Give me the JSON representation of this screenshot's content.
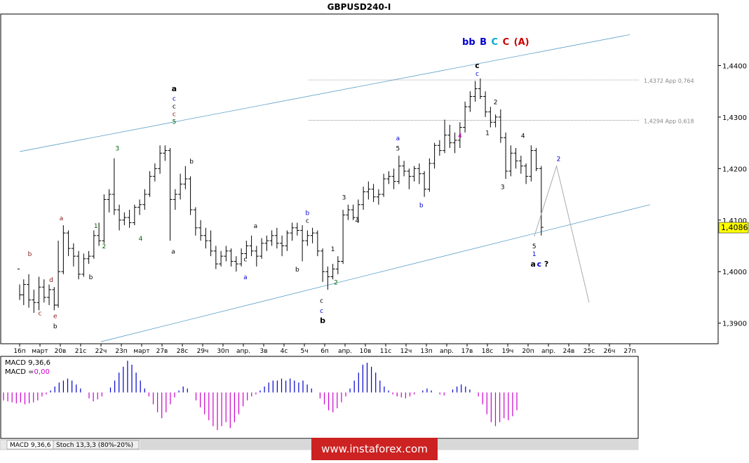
{
  "title": "GBPUSD240-I",
  "chart_data": {
    "type": "candlestick",
    "symbol": "GBPUSD240-I",
    "ylim": [
      1.386,
      1.45
    ],
    "yticks": [
      1.39,
      1.4,
      1.41,
      1.42,
      1.43,
      1.44
    ],
    "ytick_labels": [
      "1,3900",
      "1,4000",
      "1,4100",
      "1,4200",
      "1,4300",
      "1,4400"
    ],
    "current_price": 1.4086,
    "current_price_label": "1,4086",
    "xtick_labels": [
      "16п",
      "март",
      "20в",
      "21с",
      "22ч",
      "23п",
      "март",
      "27в",
      "28с",
      "29ч",
      "30п",
      "апр.",
      "3в",
      "4с",
      "5ч",
      "6п",
      "апр.",
      "10в",
      "11с",
      "12ч",
      "13п",
      "апр.",
      "17в",
      "18с",
      "19ч",
      "20п",
      "апр.",
      "24в",
      "25с",
      "26ч",
      "27п"
    ],
    "fib_levels": [
      {
        "value": 1.4372,
        "label": "1,4372 App 0,764"
      },
      {
        "value": 1.4294,
        "label": "1,4294 App 0,618"
      }
    ],
    "channel": {
      "upper": [
        [
          0,
          1.4233
        ],
        [
          30,
          1.446
        ]
      ],
      "lower": [
        [
          4,
          1.3864
        ],
        [
          31,
          1.413
        ]
      ]
    },
    "projection": [
      [
        25.3,
        1.4068
      ],
      [
        26.4,
        1.4205
      ],
      [
        28,
        1.394
      ]
    ],
    "bars": [
      [
        0.0,
        1.4005,
        1.3975,
        1.3945,
        1.3955
      ],
      [
        0.2,
        1.3955,
        1.3985,
        1.3935,
        1.3975
      ],
      [
        0.45,
        1.3975,
        1.3995,
        1.393,
        1.3945
      ],
      [
        0.7,
        1.3945,
        1.3965,
        1.392,
        1.394
      ],
      [
        0.95,
        1.394,
        1.399,
        1.3925,
        1.397
      ],
      [
        1.2,
        1.397,
        1.3985,
        1.394,
        1.395
      ],
      [
        1.45,
        1.395,
        1.3975,
        1.3935,
        1.3965
      ],
      [
        1.7,
        1.3965,
        1.397,
        1.3925,
        1.3935
      ],
      [
        1.9,
        1.3935,
        1.406,
        1.393,
        1.4
      ],
      [
        2.15,
        1.4,
        1.409,
        1.3995,
        1.4075
      ],
      [
        2.4,
        1.4075,
        1.408,
        1.403,
        1.4045
      ],
      [
        2.65,
        1.4045,
        1.4055,
        1.401,
        1.403
      ],
      [
        2.9,
        1.403,
        1.404,
        1.3985,
        1.3995
      ],
      [
        3.15,
        1.3995,
        1.4035,
        1.399,
        1.4025
      ],
      [
        3.4,
        1.4025,
        1.404,
        1.4015,
        1.403
      ],
      [
        3.65,
        1.403,
        1.408,
        1.4025,
        1.407
      ],
      [
        3.9,
        1.407,
        1.4095,
        1.405,
        1.406
      ],
      [
        4.15,
        1.406,
        1.415,
        1.4055,
        1.414
      ],
      [
        4.4,
        1.414,
        1.416,
        1.4115,
        1.415
      ],
      [
        4.65,
        1.415,
        1.422,
        1.411,
        1.412
      ],
      [
        4.9,
        1.412,
        1.413,
        1.408,
        1.41
      ],
      [
        5.15,
        1.41,
        1.4115,
        1.409,
        1.4105
      ],
      [
        5.4,
        1.4105,
        1.412,
        1.4085,
        1.4095
      ],
      [
        5.65,
        1.4095,
        1.413,
        1.409,
        1.4125
      ],
      [
        5.9,
        1.4125,
        1.414,
        1.411,
        1.413
      ],
      [
        6.15,
        1.413,
        1.416,
        1.412,
        1.415
      ],
      [
        6.4,
        1.415,
        1.4195,
        1.4145,
        1.4185
      ],
      [
        6.65,
        1.4185,
        1.421,
        1.4175,
        1.42
      ],
      [
        6.9,
        1.42,
        1.4245,
        1.419,
        1.423
      ],
      [
        7.15,
        1.423,
        1.4245,
        1.4215,
        1.4235
      ],
      [
        7.4,
        1.4235,
        1.424,
        1.406,
        1.414
      ],
      [
        7.65,
        1.414,
        1.416,
        1.412,
        1.415
      ],
      [
        7.9,
        1.415,
        1.419,
        1.414,
        1.417
      ],
      [
        8.15,
        1.417,
        1.4205,
        1.416,
        1.418
      ],
      [
        8.4,
        1.418,
        1.4185,
        1.411,
        1.412
      ],
      [
        8.65,
        1.412,
        1.4125,
        1.407,
        1.4085
      ],
      [
        8.9,
        1.4085,
        1.41,
        1.406,
        1.407
      ],
      [
        9.15,
        1.407,
        1.4085,
        1.4045,
        1.406
      ],
      [
        9.4,
        1.406,
        1.408,
        1.403,
        1.404
      ],
      [
        9.65,
        1.404,
        1.405,
        1.4005,
        1.4015
      ],
      [
        9.9,
        1.4015,
        1.404,
        1.401,
        1.403
      ],
      [
        10.15,
        1.403,
        1.405,
        1.402,
        1.404
      ],
      [
        10.4,
        1.404,
        1.4045,
        1.401,
        1.402
      ],
      [
        10.65,
        1.402,
        1.403,
        1.4,
        1.4015
      ],
      [
        10.9,
        1.4015,
        1.4045,
        1.401,
        1.4035
      ],
      [
        11.15,
        1.4035,
        1.406,
        1.4025,
        1.405
      ],
      [
        11.4,
        1.405,
        1.407,
        1.403,
        1.404
      ],
      [
        11.65,
        1.404,
        1.405,
        1.401,
        1.403
      ],
      [
        11.9,
        1.403,
        1.4065,
        1.4025,
        1.4055
      ],
      [
        12.15,
        1.4055,
        1.407,
        1.404,
        1.406
      ],
      [
        12.4,
        1.406,
        1.408,
        1.405,
        1.407
      ],
      [
        12.65,
        1.407,
        1.4085,
        1.4045,
        1.4055
      ],
      [
        12.9,
        1.4055,
        1.407,
        1.403,
        1.405
      ],
      [
        13.15,
        1.405,
        1.408,
        1.404,
        1.4075
      ],
      [
        13.4,
        1.4075,
        1.4095,
        1.406,
        1.4085
      ],
      [
        13.65,
        1.4085,
        1.4095,
        1.407,
        1.408
      ],
      [
        13.9,
        1.408,
        1.409,
        1.402,
        1.406
      ],
      [
        14.15,
        1.406,
        1.408,
        1.405,
        1.407
      ],
      [
        14.4,
        1.407,
        1.4085,
        1.4055,
        1.4075
      ],
      [
        14.65,
        1.4075,
        1.408,
        1.403,
        1.404
      ],
      [
        14.9,
        1.404,
        1.4045,
        1.398,
        1.4
      ],
      [
        15.15,
        1.4,
        1.401,
        1.3965,
        1.399
      ],
      [
        15.4,
        1.399,
        1.4015,
        1.3985,
        1.4005
      ],
      [
        15.65,
        1.4005,
        1.403,
        1.3995,
        1.402
      ],
      [
        15.9,
        1.402,
        1.412,
        1.4015,
        1.411
      ],
      [
        16.15,
        1.411,
        1.413,
        1.41,
        1.412
      ],
      [
        16.4,
        1.412,
        1.413,
        1.41,
        1.4105
      ],
      [
        16.65,
        1.4105,
        1.414,
        1.4095,
        1.413
      ],
      [
        16.9,
        1.413,
        1.4165,
        1.412,
        1.4155
      ],
      [
        17.15,
        1.4155,
        1.4175,
        1.414,
        1.416
      ],
      [
        17.4,
        1.416,
        1.417,
        1.4135,
        1.4145
      ],
      [
        17.65,
        1.4145,
        1.416,
        1.413,
        1.415
      ],
      [
        17.9,
        1.415,
        1.419,
        1.4145,
        1.418
      ],
      [
        18.15,
        1.418,
        1.4195,
        1.417,
        1.4185
      ],
      [
        18.4,
        1.4185,
        1.42,
        1.416,
        1.4175
      ],
      [
        18.65,
        1.4175,
        1.4225,
        1.417,
        1.4205
      ],
      [
        18.9,
        1.4205,
        1.4215,
        1.4185,
        1.4195
      ],
      [
        19.15,
        1.4195,
        1.42,
        1.416,
        1.4185
      ],
      [
        19.4,
        1.4185,
        1.4205,
        1.4175,
        1.42
      ],
      [
        19.65,
        1.42,
        1.421,
        1.417,
        1.419
      ],
      [
        19.9,
        1.419,
        1.4195,
        1.4145,
        1.416
      ],
      [
        20.15,
        1.416,
        1.422,
        1.4155,
        1.421
      ],
      [
        20.4,
        1.421,
        1.425,
        1.42,
        1.4245
      ],
      [
        20.65,
        1.4245,
        1.4255,
        1.4225,
        1.4235
      ],
      [
        20.9,
        1.4235,
        1.4295,
        1.423,
        1.4265
      ],
      [
        21.15,
        1.4265,
        1.4285,
        1.424,
        1.425
      ],
      [
        21.4,
        1.425,
        1.427,
        1.423,
        1.4255
      ],
      [
        21.65,
        1.4255,
        1.429,
        1.424,
        1.428
      ],
      [
        21.9,
        1.428,
        1.433,
        1.427,
        1.432
      ],
      [
        22.15,
        1.432,
        1.435,
        1.431,
        1.434
      ],
      [
        22.4,
        1.434,
        1.437,
        1.433,
        1.4355
      ],
      [
        22.65,
        1.4355,
        1.4375,
        1.4335,
        1.434
      ],
      [
        22.9,
        1.434,
        1.435,
        1.43,
        1.431
      ],
      [
        23.15,
        1.431,
        1.432,
        1.428,
        1.429
      ],
      [
        23.4,
        1.429,
        1.4305,
        1.428,
        1.43
      ],
      [
        23.65,
        1.43,
        1.4315,
        1.425,
        1.426
      ],
      [
        23.9,
        1.426,
        1.427,
        1.418,
        1.4195
      ],
      [
        24.15,
        1.4195,
        1.4245,
        1.4185,
        1.423
      ],
      [
        24.4,
        1.423,
        1.424,
        1.42,
        1.4215
      ],
      [
        24.65,
        1.4215,
        1.4225,
        1.419,
        1.4205
      ],
      [
        24.9,
        1.4205,
        1.421,
        1.417,
        1.4185
      ],
      [
        25.15,
        1.4185,
        1.4245,
        1.4175,
        1.4235
      ],
      [
        25.4,
        1.4235,
        1.424,
        1.4195,
        1.42
      ],
      [
        25.65,
        1.42,
        1.4205,
        1.407,
        1.4086
      ]
    ],
    "labels": [
      {
        "x": 0.5,
        "y": 1.403,
        "t": "b",
        "c": "#8b1a1a"
      },
      {
        "x": 1.0,
        "y": 1.3915,
        "t": "c",
        "c": "#8b1a1a"
      },
      {
        "x": 1.55,
        "y": 1.398,
        "t": "d",
        "c": "#8b1a1a"
      },
      {
        "x": 1.75,
        "y": 1.391,
        "t": "e",
        "c": "#8b1a1a"
      },
      {
        "x": 1.75,
        "y": 1.389,
        "t": "b",
        "c": "#000000"
      },
      {
        "x": 2.05,
        "y": 1.41,
        "t": "a",
        "c": "#8b1a1a"
      },
      {
        "x": 3.5,
        "y": 1.3985,
        "t": "b",
        "c": "#000000"
      },
      {
        "x": 3.75,
        "y": 1.4085,
        "t": "1",
        "c": "#006400"
      },
      {
        "x": 4.15,
        "y": 1.4045,
        "t": "2",
        "c": "#006400"
      },
      {
        "x": 4.8,
        "y": 1.4235,
        "t": "3",
        "c": "#006400"
      },
      {
        "x": 5.95,
        "y": 1.406,
        "t": "4",
        "c": "#006400"
      },
      {
        "x": 7.55,
        "y": 1.4035,
        "t": "a",
        "c": "#000000"
      },
      {
        "x": 8.45,
        "y": 1.421,
        "t": "b",
        "c": "#000000"
      },
      {
        "x": 11.1,
        "y": 1.402,
        "t": "c",
        "c": "#000000"
      },
      {
        "x": 11.1,
        "y": 1.3985,
        "t": "a",
        "c": "#0000cd"
      },
      {
        "x": 11.6,
        "y": 1.4085,
        "t": "a",
        "c": "#000000"
      },
      {
        "x": 13.65,
        "y": 1.4,
        "t": "b",
        "c": "#000000"
      },
      {
        "x": 14.15,
        "y": 1.411,
        "t": "b",
        "c": "#0000cd"
      },
      {
        "x": 14.15,
        "y": 1.4095,
        "t": "c",
        "c": "#000000"
      },
      {
        "x": 14.85,
        "y": 1.394,
        "t": "c",
        "c": "#000000"
      },
      {
        "x": 14.85,
        "y": 1.392,
        "t": "c",
        "c": "#0000cd"
      },
      {
        "x": 15.4,
        "y": 1.404,
        "t": "1",
        "c": "#000000"
      },
      {
        "x": 15.55,
        "y": 1.3975,
        "t": "2",
        "c": "#006400"
      },
      {
        "x": 15.95,
        "y": 1.414,
        "t": "3",
        "c": "#000000"
      },
      {
        "x": 16.6,
        "y": 1.4095,
        "t": "4",
        "c": "#000000"
      },
      {
        "x": 18.6,
        "y": 1.4255,
        "t": "a",
        "c": "#0000cd"
      },
      {
        "x": 18.6,
        "y": 1.4235,
        "t": "5",
        "c": "#000000"
      },
      {
        "x": 19.75,
        "y": 1.4125,
        "t": "b",
        "c": "#0000cd"
      },
      {
        "x": 21.65,
        "y": 1.426,
        "t": "4",
        "c": "#cc00cc"
      },
      {
        "x": 23.4,
        "y": 1.4325,
        "t": "2",
        "c": "#000000"
      },
      {
        "x": 23.0,
        "y": 1.4265,
        "t": "1",
        "c": "#000000"
      },
      {
        "x": 23.75,
        "y": 1.416,
        "t": "3",
        "c": "#000000"
      },
      {
        "x": 24.75,
        "y": 1.426,
        "t": "4",
        "c": "#000000"
      },
      {
        "x": 25.3,
        "y": 1.4045,
        "t": "5",
        "c": "#000000"
      },
      {
        "x": 25.3,
        "y": 1.403,
        "t": "1",
        "c": "#0000cd"
      },
      {
        "x": 26.5,
        "y": 1.4215,
        "t": "2",
        "c": "#0000cd"
      },
      {
        "x": 7.6,
        "y": 1.4332,
        "t": "c",
        "c": "#0000cd"
      },
      {
        "x": 7.6,
        "y": 1.4317,
        "t": "c",
        "c": "#000000"
      },
      {
        "x": 7.6,
        "y": 1.4302,
        "t": "c",
        "c": "#8b1a1a"
      },
      {
        "x": 7.6,
        "y": 1.4287,
        "t": "5",
        "c": "#006400"
      },
      {
        "x": 22.5,
        "y": 1.438,
        "t": "c",
        "c": "#0000cd"
      }
    ],
    "bold_labels": [
      {
        "x": 7.6,
        "y": 1.435,
        "t": "a",
        "c": "#000000"
      },
      {
        "x": 14.9,
        "y": 1.39,
        "t": "b",
        "c": "#000000"
      },
      {
        "x": 22.5,
        "y": 1.4395,
        "t": "c",
        "c": "#000000"
      },
      {
        "x": 25.25,
        "y": 1.401,
        "t": "a",
        "c": "#000000"
      },
      {
        "x": 25.55,
        "y": 1.401,
        "t": "c",
        "c": "#0000cd"
      },
      {
        "x": 25.9,
        "y": 1.401,
        "t": "?",
        "c": "#000000"
      }
    ],
    "top_wave_label": [
      {
        "t": "b",
        "c": "#0000cd"
      },
      {
        "t": "b",
        "c": "#0000cd"
      },
      {
        "t": "B",
        "c": "#0000cd"
      },
      {
        "t": "C",
        "c": "#00aacc"
      },
      {
        "t": "C",
        "c": "#cc0000"
      },
      {
        "t": "(A)",
        "c": "#cc0000"
      }
    ],
    "macd": {
      "label_main": "MACD 9,36,6",
      "label_signal_prefix": "MACD =",
      "label_signal_value": "0,00",
      "ylim": [
        -0.0045,
        0.0035
      ],
      "values": [
        -0.0008,
        -0.0009,
        -0.001,
        -0.0011,
        -0.001,
        -0.0012,
        -0.0011,
        -0.001,
        -0.0008,
        -0.0004,
        -0.0002,
        0.0002,
        0.0006,
        0.001,
        0.0012,
        0.0014,
        0.0012,
        0.0008,
        0.0004,
        0.0,
        -0.0006,
        -0.0009,
        -0.0007,
        -0.0004,
        0.0,
        0.0005,
        0.0012,
        0.002,
        0.0026,
        0.0032,
        0.0028,
        0.002,
        0.0012,
        0.0004,
        -0.0004,
        -0.0012,
        -0.002,
        -0.0026,
        -0.002,
        -0.0012,
        -0.0005,
        0.0002,
        0.0006,
        0.0004,
        0.0,
        -0.0008,
        -0.0015,
        -0.0022,
        -0.0028,
        -0.0034,
        -0.0038,
        -0.0034,
        -0.003,
        -0.0036,
        -0.003,
        -0.0022,
        -0.0014,
        -0.0008,
        -0.0004,
        -0.0002,
        0.0002,
        0.0006,
        0.001,
        0.0012,
        0.0012,
        0.0014,
        0.0012,
        0.0014,
        0.0012,
        0.001,
        0.0012,
        0.0008,
        0.0004,
        0.0,
        -0.0006,
        -0.0012,
        -0.0018,
        -0.002,
        -0.0016,
        -0.001,
        -0.0004,
        0.0004,
        0.0012,
        0.002,
        0.0028,
        0.003,
        0.0026,
        0.002,
        0.0012,
        0.0006,
        0.0002,
        -0.0002,
        -0.0004,
        -0.0005,
        -0.0006,
        -0.0004,
        -0.0002,
        0.0,
        0.0002,
        0.0004,
        0.0002,
        0.0,
        -0.0002,
        -0.0003,
        0.0,
        0.0003,
        0.0006,
        0.0008,
        0.0006,
        0.0003,
        0.0,
        -0.0004,
        -0.0012,
        -0.0022,
        -0.003,
        -0.0034,
        -0.003,
        -0.0026,
        -0.0028,
        -0.0024,
        -0.0018
      ]
    }
  },
  "tabs": [
    "MACD 9,36,6",
    "Stoch 13,3,3 (80%-20%)"
  ],
  "watermark": "www.instaforex.com",
  "colors": {
    "bar": "#000000",
    "channel": "#5a9fc8",
    "fib": "#555555",
    "fib_label": "#888888",
    "projection": "#aaaaaa",
    "macd_pos": "#0000cc",
    "macd_neg": "#cc00cc",
    "price_tag": "#ffff00",
    "watermark_bg": "#cc2222"
  }
}
